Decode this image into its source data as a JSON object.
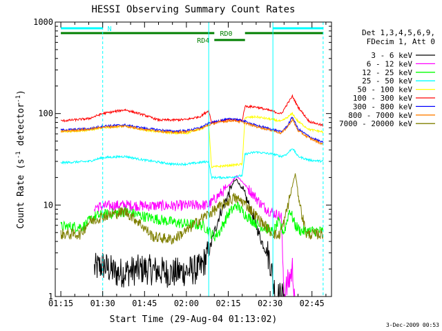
{
  "chart_data": {
    "type": "line",
    "title": "HESSI Observing Summary Count Rates",
    "xlabel": "Start Time (29-Aug-04 01:13:02)",
    "ylabel_main": "Count Rate (s",
    "ylabel_sup1": "-1",
    "ylabel_mid": " detector",
    "ylabel_sup2": "-1",
    "ylabel_end": ")",
    "y_scale": "log",
    "xlim": [
      "01:13",
      "02:52"
    ],
    "ylim": [
      1,
      1000
    ],
    "x_ticks": [
      "01:15",
      "01:30",
      "01:45",
      "02:00",
      "02:15",
      "02:30",
      "02:45"
    ],
    "y_ticks": [
      "1",
      "10",
      "100",
      "1000"
    ],
    "legend_header": [
      "Det 1,3,4,5,6,9,",
      "FDecim 1, Att 0"
    ],
    "date_stamp": "3-Dec-2009 00:53",
    "annotations": [
      {
        "label": "N",
        "color": "#00ffff",
        "segments": [
          [
            "01:15",
            "01:30"
          ],
          [
            "02:31",
            "02:49"
          ]
        ]
      },
      {
        "label": "RD0",
        "color": "#007f00",
        "segments": [
          [
            "01:15",
            "02:10"
          ],
          [
            "02:21",
            "02:49"
          ]
        ]
      },
      {
        "label": "RD4",
        "color": "#007f00",
        "segments": [
          [
            "02:10",
            "02:21"
          ]
        ]
      }
    ],
    "vlines_solid": [
      "02:08",
      "02:31"
    ],
    "vlines_dashed": [
      "01:30",
      "02:49"
    ],
    "series": [
      {
        "name": "3 - 6 keV",
        "color": "#000000",
        "x": [
          "01:27",
          "01:30",
          "01:35",
          "01:45",
          "01:55",
          "02:05",
          "02:08",
          "02:10",
          "02:12",
          "02:15",
          "02:17",
          "02:18",
          "02:20",
          "02:23",
          "02:25",
          "02:27",
          "02:29",
          "02:30",
          "02:31",
          "02:32",
          "02:35"
        ],
        "y": [
          2,
          2.2,
          1.8,
          2,
          1.8,
          2,
          3,
          5,
          8,
          13,
          18,
          19,
          15,
          9,
          6,
          4,
          3,
          2.5,
          1.5,
          1,
          1
        ]
      },
      {
        "name": "6 - 12 keV",
        "color": "#ff00ff",
        "x": [
          "01:27",
          "01:30",
          "01:38",
          "01:45",
          "01:55",
          "02:05",
          "02:08",
          "02:10",
          "02:13",
          "02:15",
          "02:18",
          "02:20",
          "02:24",
          "02:27",
          "02:30",
          "02:32",
          "02:34",
          "02:35",
          "02:38",
          "02:39"
        ],
        "y": [
          9.5,
          9.7,
          10,
          9.8,
          9.8,
          10,
          10,
          11.5,
          14,
          16,
          21,
          18,
          13,
          10,
          8.5,
          8,
          7.5,
          1,
          2,
          1
        ]
      },
      {
        "name": "12 - 25 keV",
        "color": "#00ff00",
        "x": [
          "01:15",
          "01:23",
          "01:27",
          "01:32",
          "01:38",
          "01:45",
          "01:55",
          "02:00",
          "02:06",
          "02:10",
          "02:12",
          "02:15",
          "02:18",
          "02:20",
          "02:23",
          "02:26",
          "02:29",
          "02:31",
          "02:33",
          "02:35",
          "02:37",
          "02:39",
          "02:41",
          "02:49"
        ],
        "y": [
          5.8,
          5.8,
          7.5,
          8,
          8.5,
          7.5,
          6.5,
          6.2,
          6,
          4.5,
          5.2,
          8,
          10,
          8.5,
          7,
          6,
          5.5,
          5,
          6.5,
          5,
          9,
          6,
          5.2,
          5.2
        ]
      },
      {
        "name": "25 - 50 keV",
        "color": "#00ffff",
        "x": [
          "01:15",
          "01:25",
          "01:30",
          "01:38",
          "01:45",
          "01:55",
          "02:00",
          "02:08",
          "02:09",
          "02:15",
          "02:20",
          "02:21",
          "02:25",
          "02:31",
          "02:34",
          "02:36",
          "02:38",
          "02:40",
          "02:44",
          "02:49"
        ],
        "y": [
          29,
          30,
          33,
          34,
          31,
          28,
          28,
          30,
          20,
          20,
          21,
          36,
          38,
          36,
          34,
          36,
          42,
          34,
          31,
          30
        ]
      },
      {
        "name": "50 - 100 keV",
        "color": "#ffff00",
        "x": [
          "01:15",
          "01:25",
          "01:30",
          "01:38",
          "01:45",
          "01:55",
          "02:00",
          "02:06",
          "02:08",
          "02:09",
          "02:15",
          "02:20",
          "02:21",
          "02:25",
          "02:31",
          "02:34",
          "02:36",
          "02:38",
          "02:40",
          "02:44",
          "02:49"
        ],
        "y": [
          63,
          66,
          70,
          73,
          66,
          61,
          61,
          70,
          76,
          26,
          27,
          28,
          90,
          92,
          86,
          82,
          90,
          100,
          82,
          67,
          63
        ]
      },
      {
        "name": "100 - 300 keV",
        "color": "#ff0000",
        "x": [
          "01:15",
          "01:25",
          "01:30",
          "01:38",
          "01:45",
          "01:50",
          "01:55",
          "02:00",
          "02:05",
          "02:08",
          "02:09",
          "02:15",
          "02:20",
          "02:21",
          "02:25",
          "02:31",
          "02:34",
          "02:36",
          "02:38",
          "02:40",
          "02:44",
          "02:49"
        ],
        "y": [
          83,
          88,
          100,
          110,
          96,
          85,
          85,
          86,
          93,
          108,
          80,
          85,
          84,
          120,
          118,
          106,
          99,
          125,
          155,
          118,
          82,
          74
        ]
      },
      {
        "name": "300 - 800 keV",
        "color": "#0000ff",
        "x": [
          "01:15",
          "01:25",
          "01:30",
          "01:38",
          "01:45",
          "01:55",
          "02:00",
          "02:05",
          "02:08",
          "02:12",
          "02:17",
          "02:21",
          "02:25",
          "02:31",
          "02:34",
          "02:36",
          "02:38",
          "02:40",
          "02:44",
          "02:49"
        ],
        "y": [
          66,
          68,
          73,
          75,
          69,
          64,
          65,
          70,
          78,
          84,
          88,
          82,
          74,
          67,
          63,
          72,
          92,
          68,
          56,
          48
        ]
      },
      {
        "name": "800 - 7000 keV",
        "color": "#ff7f00",
        "x": [
          "01:15",
          "01:25",
          "01:30",
          "01:38",
          "01:45",
          "01:55",
          "02:00",
          "02:05",
          "02:08",
          "02:12",
          "02:17",
          "02:21",
          "02:25",
          "02:31",
          "02:34",
          "02:36",
          "02:38",
          "02:40",
          "02:44",
          "02:49"
        ],
        "y": [
          64,
          67,
          71,
          73,
          67,
          62,
          63,
          68,
          75,
          81,
          84,
          79,
          72,
          65,
          61,
          70,
          86,
          65,
          54,
          46
        ]
      },
      {
        "name": "7000 - 20000 keV",
        "color": "#7f7f00",
        "x": [
          "01:15",
          "01:22",
          "01:25",
          "01:30",
          "01:38",
          "01:43",
          "01:48",
          "01:55",
          "02:00",
          "02:05",
          "02:08",
          "02:13",
          "02:17",
          "02:20",
          "02:23",
          "02:26",
          "02:30",
          "02:33",
          "02:35",
          "02:37",
          "02:39",
          "02:41",
          "02:43",
          "02:49"
        ],
        "y": [
          4.8,
          4.8,
          6.5,
          7.5,
          8.5,
          6.5,
          4.5,
          4.2,
          5.2,
          7,
          8,
          10,
          12,
          11,
          9,
          7,
          5.2,
          4.5,
          6.5,
          12,
          22,
          9,
          4.8,
          4.8
        ]
      }
    ]
  }
}
